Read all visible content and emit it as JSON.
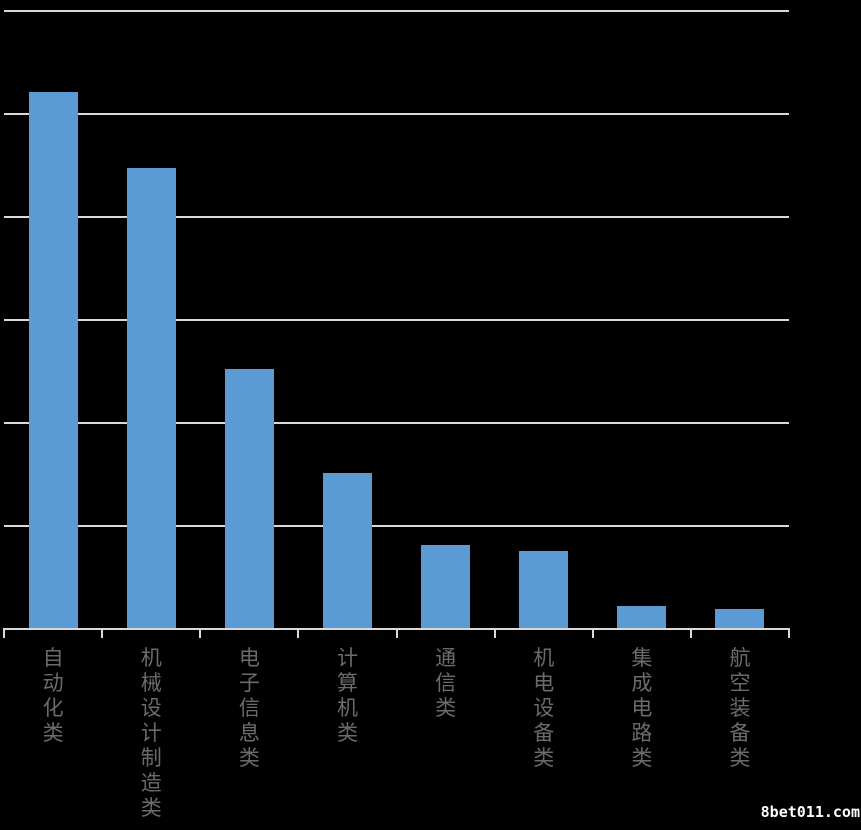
{
  "chart_data": {
    "type": "bar",
    "categories": [
      "自动化类",
      "机械设计制造类",
      "电子信息类",
      "计算机类",
      "通信类",
      "机电设备类",
      "集成电路类",
      "航空装备类"
    ],
    "values": [
      52.1,
      44.8,
      25.2,
      15.1,
      8.2,
      7.6,
      2.2,
      1.9
    ],
    "title": "",
    "xlabel": "",
    "ylabel": "",
    "ylim": [
      0,
      60
    ],
    "gridline_step": 10,
    "grid": true,
    "legend": "none",
    "y_tick_labels_visible": false,
    "x_labels_orientation": "vertical-stacked",
    "bar_color": "#5b9bd5",
    "gridline_color": "#d9d9d9",
    "axis_color": "#d9d9d9",
    "label_color": "#6b6b6b",
    "background_color": "#000000"
  },
  "watermark": {
    "text": "8bet011.com",
    "color": "#ffffff"
  }
}
